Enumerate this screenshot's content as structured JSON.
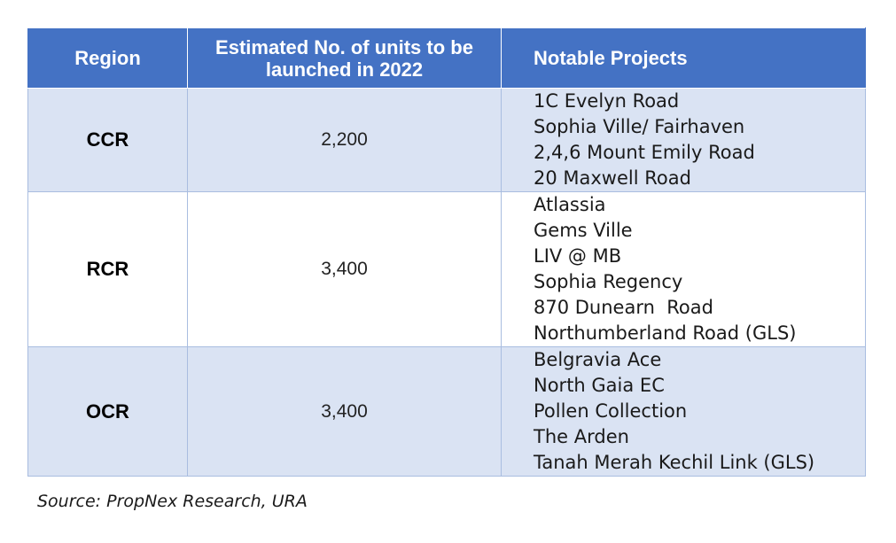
{
  "table": {
    "headers": {
      "region": "Region",
      "units_line1": "Estimated No. of units to be",
      "units_line2": "launched in 2022",
      "projects": "Notable Projects"
    },
    "rows": [
      {
        "region": "CCR",
        "units": "2,200",
        "projects": [
          "1C Evelyn Road",
          "Sophia Ville/ Fairhaven",
          "2,4,6 Mount Emily Road",
          "20 Maxwell Road"
        ]
      },
      {
        "region": "RCR",
        "units": "3,400",
        "projects": [
          "Atlassia",
          "Gems Ville",
          "LIV @ MB",
          "Sophia Regency",
          "870 Dunearn  Road",
          "Northumberland Road (GLS)"
        ]
      },
      {
        "region": "OCR",
        "units": "3,400",
        "projects": [
          "Belgravia Ace",
          "North Gaia EC",
          "Pollen Collection",
          "The Arden",
          "Tanah Merah Kechil Link (GLS)"
        ]
      }
    ]
  },
  "source": "Source: PropNex Research, URA",
  "colors": {
    "header_bg": "#4472c4",
    "header_text": "#ffffff",
    "row_shade": "#dae3f3",
    "border": "#a9bde0"
  }
}
